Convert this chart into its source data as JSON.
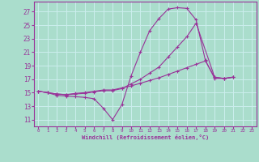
{
  "xlabel": "Windchill (Refroidissement éolien,°C)",
  "background_color": "#aaddcc",
  "grid_color": "#cceeee",
  "line_color": "#993399",
  "x_ticks": [
    0,
    1,
    2,
    3,
    4,
    5,
    6,
    7,
    8,
    9,
    10,
    11,
    12,
    13,
    14,
    15,
    16,
    17,
    18,
    19,
    20,
    21,
    22,
    23
  ],
  "y_ticks": [
    11,
    13,
    15,
    17,
    19,
    21,
    23,
    25,
    27
  ],
  "xlim": [
    -0.5,
    23.5
  ],
  "ylim": [
    10.0,
    28.5
  ],
  "series": [
    {
      "x": [
        0,
        1,
        2,
        3,
        4,
        5,
        6,
        7,
        8,
        9,
        10,
        11,
        12,
        13,
        14,
        15,
        16,
        17,
        18,
        19,
        20,
        21
      ],
      "y": [
        15.2,
        15.0,
        14.6,
        14.5,
        14.4,
        14.3,
        14.1,
        12.7,
        11.0,
        13.2,
        17.5,
        21.0,
        24.2,
        26.0,
        27.4,
        27.6,
        27.5,
        25.8,
        19.8,
        17.1,
        17.1,
        17.3
      ]
    },
    {
      "x": [
        0,
        1,
        2,
        3,
        4,
        5,
        6,
        7,
        8,
        9,
        10,
        11,
        12,
        13,
        14,
        15,
        16,
        17,
        19,
        20,
        21
      ],
      "y": [
        15.2,
        15.0,
        14.8,
        14.7,
        14.8,
        14.9,
        15.1,
        15.3,
        15.3,
        15.6,
        16.3,
        17.0,
        17.9,
        18.8,
        20.3,
        21.8,
        23.3,
        25.3,
        17.3,
        17.1,
        17.3
      ]
    },
    {
      "x": [
        0,
        1,
        2,
        3,
        4,
        5,
        6,
        7,
        8,
        9,
        10,
        11,
        12,
        13,
        14,
        15,
        16,
        17,
        18,
        19,
        20,
        21
      ],
      "y": [
        15.2,
        15.0,
        14.8,
        14.7,
        14.9,
        15.0,
        15.2,
        15.4,
        15.4,
        15.7,
        16.0,
        16.4,
        16.8,
        17.2,
        17.7,
        18.2,
        18.7,
        19.2,
        19.7,
        17.3,
        17.1,
        17.3
      ]
    }
  ]
}
